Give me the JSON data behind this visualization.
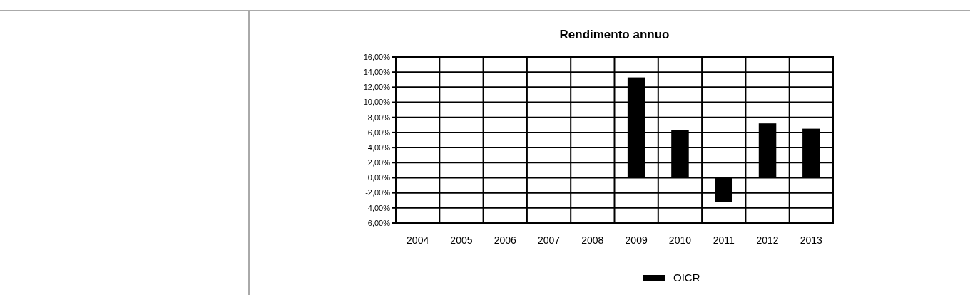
{
  "chart_data": {
    "type": "bar",
    "title": "Rendimento annuo",
    "categories": [
      "2004",
      "2005",
      "2006",
      "2007",
      "2008",
      "2009",
      "2010",
      "2011",
      "2012",
      "2013"
    ],
    "series": [
      {
        "name": "OICR",
        "color": "#000000",
        "values": [
          null,
          null,
          null,
          null,
          null,
          13.3,
          6.3,
          -3.2,
          7.2,
          6.5
        ]
      }
    ],
    "ylim": [
      -6,
      16
    ],
    "yticks": [
      {
        "value": -6,
        "label": "-6,00%"
      },
      {
        "value": -4,
        "label": "-4,00%"
      },
      {
        "value": -2,
        "label": "-2,00%"
      },
      {
        "value": 0,
        "label": "0,00%"
      },
      {
        "value": 2,
        "label": "2,00%"
      },
      {
        "value": 4,
        "label": "4,00%"
      },
      {
        "value": 6,
        "label": "6,00%"
      },
      {
        "value": 8,
        "label": "8,00%"
      },
      {
        "value": 10,
        "label": "10,00%"
      },
      {
        "value": 12,
        "label": "12,00%"
      },
      {
        "value": 14,
        "label": "14,00%"
      },
      {
        "value": 16,
        "label": "16,00%"
      }
    ],
    "grid": true,
    "legend": "bottom"
  }
}
